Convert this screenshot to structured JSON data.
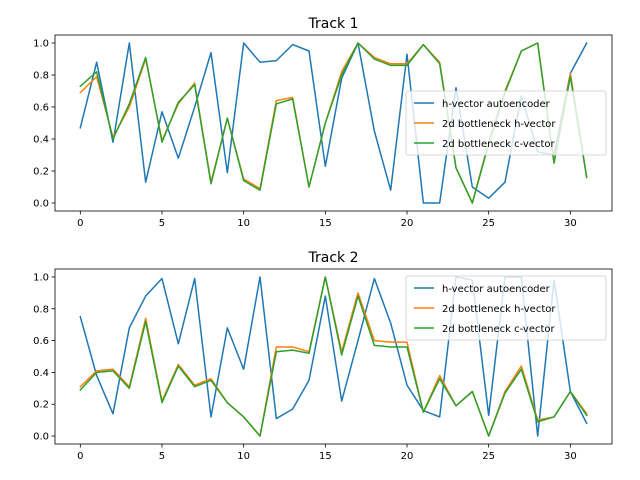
{
  "colors": {
    "h-vector autoencoder": "#1f77b4",
    "2d bottleneck h-vector": "#ff7f0e",
    "2d bottleneck c-vector": "#2ca02c"
  },
  "chart_data": [
    {
      "type": "line",
      "title": "Track 1",
      "xlabel": "",
      "ylabel": "",
      "xlim": [
        -1.55,
        32.55
      ],
      "ylim": [
        -0.05,
        1.05
      ],
      "xticks": [
        0,
        5,
        10,
        15,
        20,
        25,
        30
      ],
      "yticks": [
        0.0,
        0.2,
        0.4,
        0.6,
        0.8,
        1.0
      ],
      "legend": "right",
      "grid": false,
      "x": [
        0,
        1,
        2,
        3,
        4,
        5,
        6,
        7,
        8,
        9,
        10,
        11,
        12,
        13,
        14,
        15,
        16,
        17,
        18,
        19,
        20,
        21,
        22,
        23,
        24,
        25,
        26,
        27,
        28,
        29,
        30,
        31
      ],
      "series": [
        {
          "name": "h-vector autoencoder",
          "values": [
            0.47,
            0.88,
            0.38,
            1.0,
            0.13,
            0.57,
            0.28,
            0.6,
            0.94,
            0.19,
            1.0,
            0.88,
            0.89,
            0.99,
            0.95,
            0.23,
            0.78,
            1.0,
            0.45,
            0.08,
            0.93,
            0.0,
            0.0,
            0.72,
            0.1,
            0.03,
            0.13,
            0.67,
            0.32,
            0.3,
            0.81,
            1.0
          ]
        },
        {
          "name": "2d bottleneck h-vector",
          "values": [
            0.69,
            0.79,
            0.41,
            0.6,
            0.9,
            0.39,
            0.62,
            0.75,
            0.13,
            0.53,
            0.15,
            0.09,
            0.64,
            0.66,
            0.1,
            0.5,
            0.82,
            1.0,
            0.91,
            0.87,
            0.87,
            0.99,
            0.88,
            0.22,
            0.0,
            0.38,
            0.7,
            0.95,
            1.0,
            0.25,
            0.81,
            0.16
          ]
        },
        {
          "name": "2d bottleneck c-vector",
          "values": [
            0.73,
            0.82,
            0.4,
            0.62,
            0.91,
            0.38,
            0.63,
            0.74,
            0.12,
            0.53,
            0.14,
            0.08,
            0.62,
            0.65,
            0.1,
            0.5,
            0.8,
            1.0,
            0.9,
            0.86,
            0.86,
            0.99,
            0.87,
            0.22,
            0.0,
            0.37,
            0.69,
            0.95,
            1.0,
            0.25,
            0.79,
            0.16
          ]
        }
      ]
    },
    {
      "type": "line",
      "title": "Track 2",
      "xlabel": "",
      "ylabel": "",
      "xlim": [
        -1.55,
        32.55
      ],
      "ylim": [
        -0.05,
        1.05
      ],
      "xticks": [
        0,
        5,
        10,
        15,
        20,
        25,
        30
      ],
      "yticks": [
        0.0,
        0.2,
        0.4,
        0.6,
        0.8,
        1.0
      ],
      "legend": "top-right",
      "grid": false,
      "x": [
        0,
        1,
        2,
        3,
        4,
        5,
        6,
        7,
        8,
        9,
        10,
        11,
        12,
        13,
        14,
        15,
        16,
        17,
        18,
        19,
        20,
        21,
        22,
        23,
        24,
        25,
        26,
        27,
        28,
        29,
        30,
        31
      ],
      "series": [
        {
          "name": "h-vector autoencoder",
          "values": [
            0.75,
            0.38,
            0.14,
            0.68,
            0.88,
            0.99,
            0.58,
            0.99,
            0.12,
            0.68,
            0.42,
            1.0,
            0.11,
            0.17,
            0.35,
            0.88,
            0.22,
            0.6,
            0.99,
            0.71,
            0.32,
            0.16,
            0.12,
            1.0,
            0.98,
            0.13,
            1.0,
            1.0,
            0.0,
            0.98,
            0.28,
            0.08
          ]
        },
        {
          "name": "2d bottleneck h-vector",
          "values": [
            0.31,
            0.41,
            0.42,
            0.31,
            0.74,
            0.22,
            0.45,
            0.32,
            0.36,
            0.21,
            0.12,
            0.0,
            0.56,
            0.56,
            0.53,
            1.0,
            0.53,
            0.9,
            0.6,
            0.59,
            0.59,
            0.15,
            0.38,
            0.19,
            0.28,
            0.0,
            0.28,
            0.44,
            0.1,
            0.12,
            0.28,
            0.14
          ]
        },
        {
          "name": "2d bottleneck c-vector",
          "values": [
            0.29,
            0.4,
            0.41,
            0.3,
            0.72,
            0.21,
            0.44,
            0.31,
            0.35,
            0.21,
            0.12,
            0.0,
            0.53,
            0.54,
            0.52,
            1.0,
            0.51,
            0.88,
            0.57,
            0.56,
            0.56,
            0.15,
            0.36,
            0.19,
            0.28,
            0.0,
            0.27,
            0.42,
            0.09,
            0.12,
            0.28,
            0.13
          ]
        }
      ]
    }
  ]
}
